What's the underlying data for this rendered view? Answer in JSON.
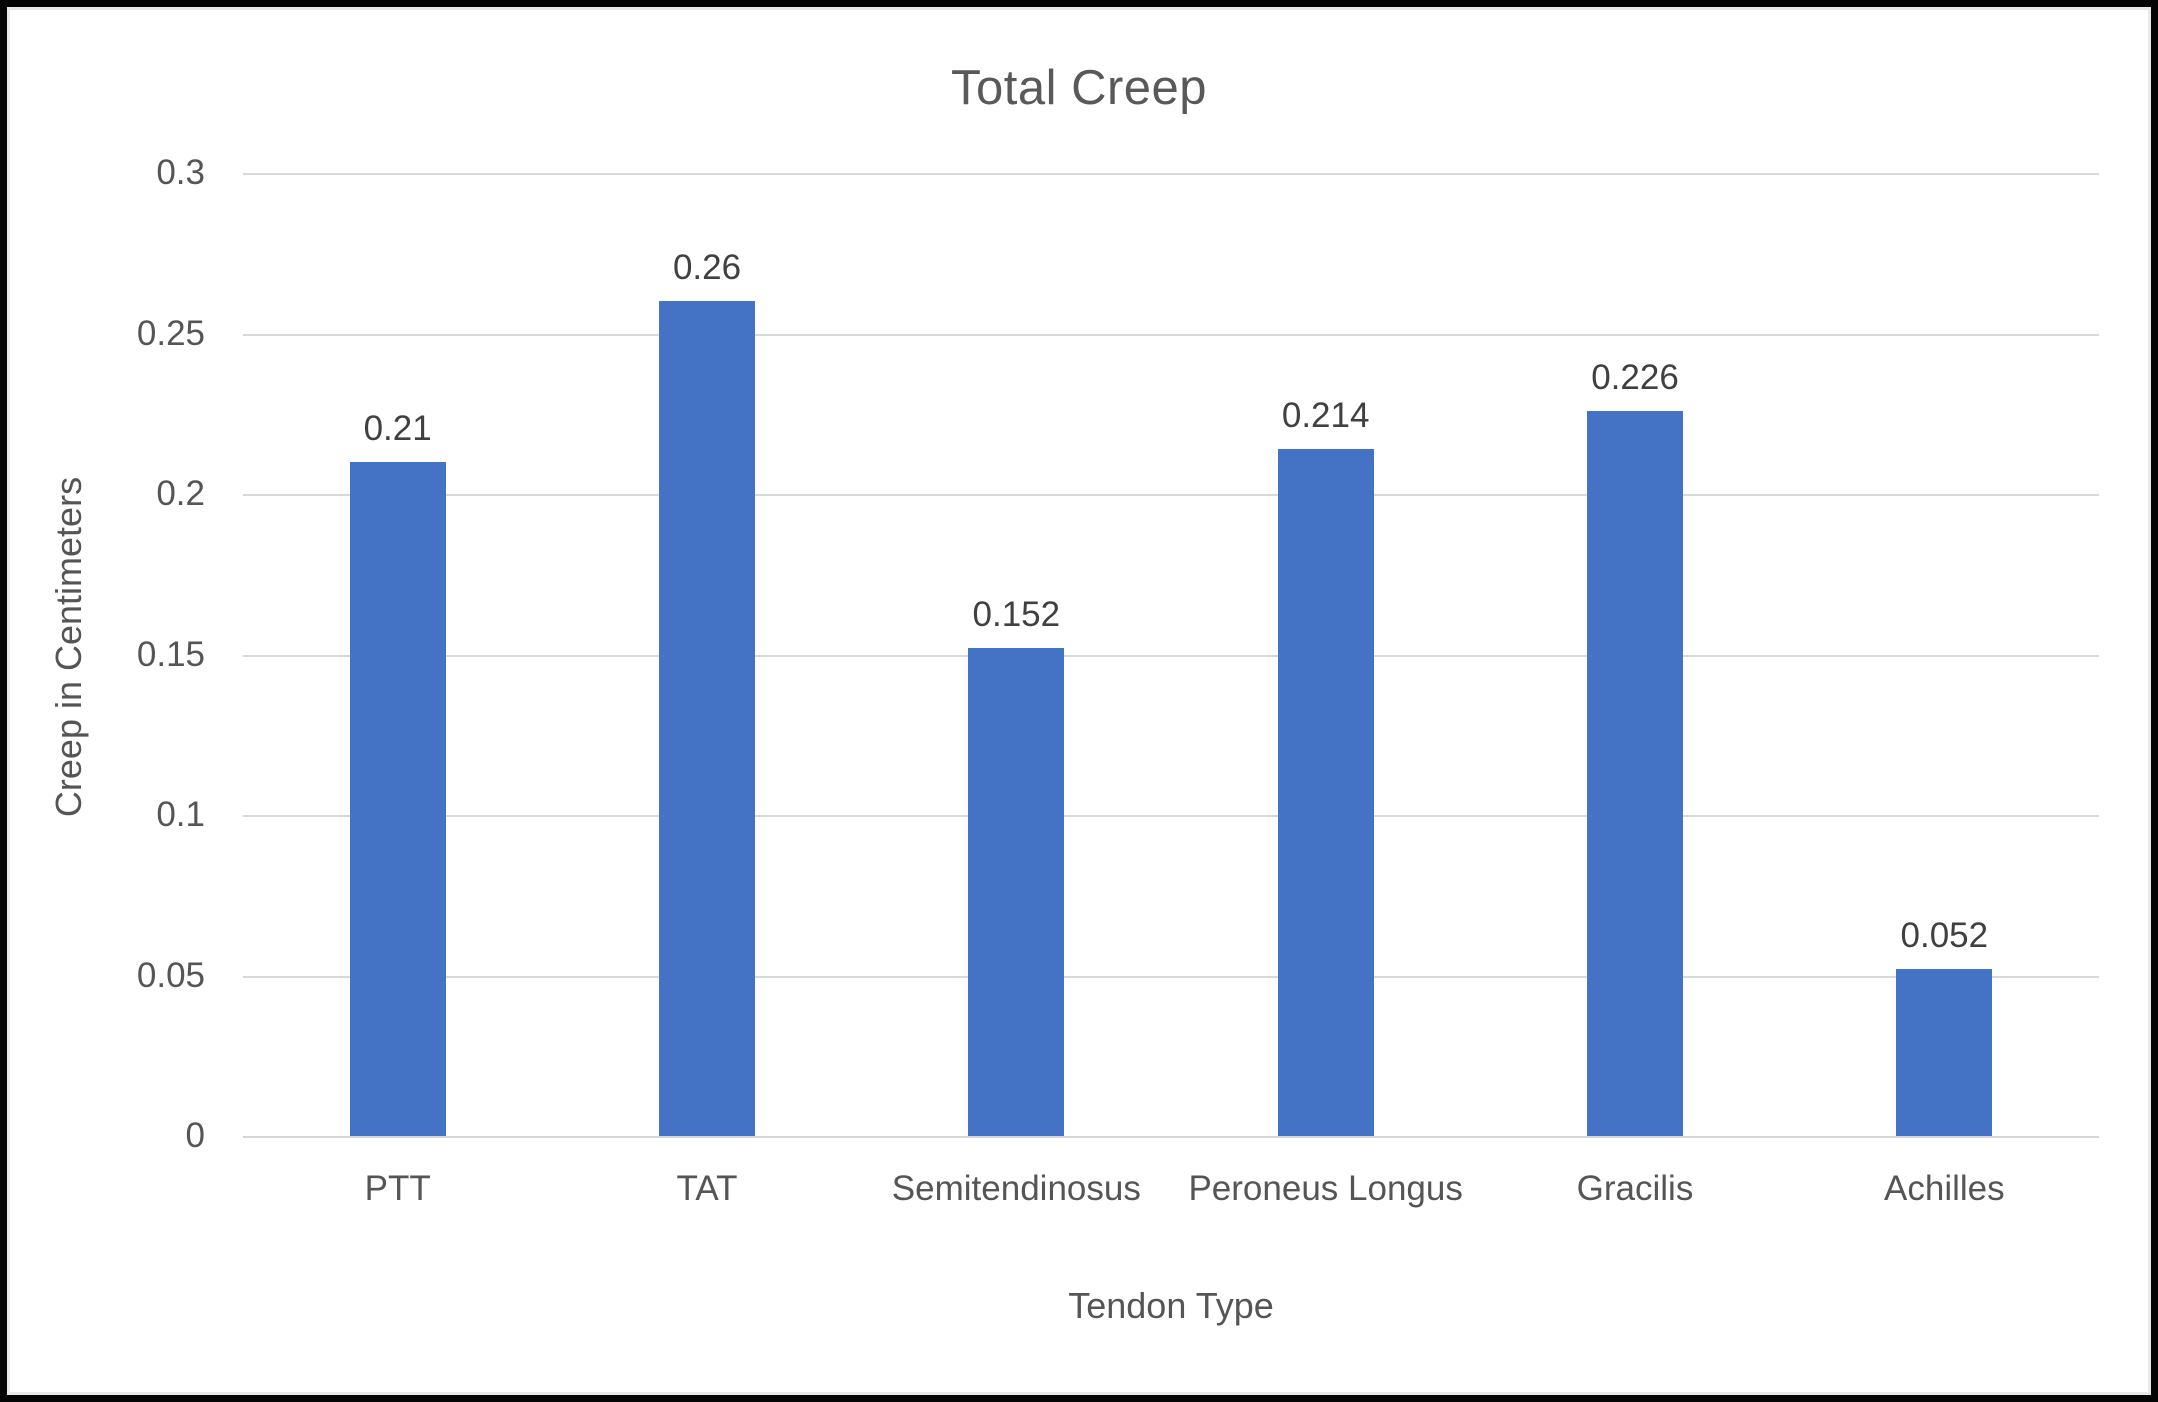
{
  "chart_data": {
    "type": "bar",
    "title": "Total Creep",
    "xlabel": "Tendon Type",
    "ylabel": "Creep in Centimeters",
    "categories": [
      "PTT",
      "TAT",
      "Semitendinosus",
      "Peroneus Longus",
      "Gracilis",
      "Achilles"
    ],
    "values": [
      0.21,
      0.26,
      0.152,
      0.214,
      0.226,
      0.052
    ],
    "data_labels": [
      "0.21",
      "0.26",
      "0.152",
      "0.214",
      "0.226",
      "0.052"
    ],
    "ylim": [
      0,
      0.3
    ],
    "ytick_interval": 0.05,
    "yticks": [
      "0.3",
      "0.25",
      "0.2",
      "0.15",
      "0.1",
      "0.05",
      "0"
    ],
    "grid": "horizontal-gridlines-on",
    "legend": "none",
    "colors": {
      "bar": "#4472C4",
      "gridline": "#D9D9D9",
      "title_text": "#595959",
      "axis_text": "#555555",
      "data_label_text": "#404040",
      "background": "#FFFFFF",
      "outer_border": "#050505"
    }
  }
}
